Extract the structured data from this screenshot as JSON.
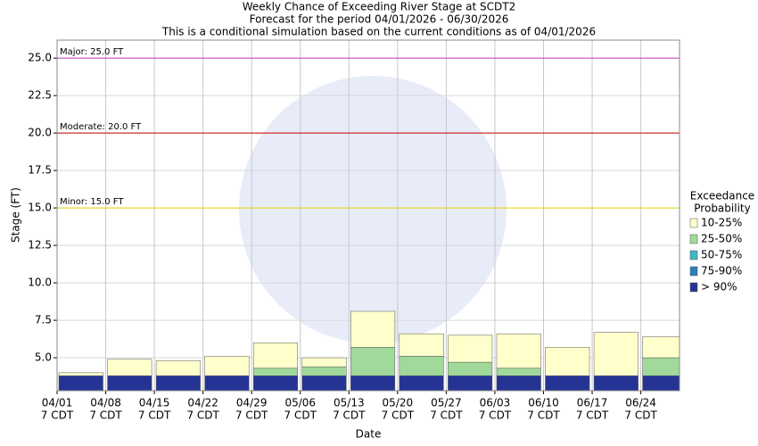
{
  "chart_data": {
    "type": "floating_bar",
    "title": "Weekly Chance of Exceeding River Stage at SCDT2",
    "subtitle": "Forecast for the period 04/01/2026 - 06/30/2026",
    "note": "This is a conditional simulation based on the current conditions as of 04/01/2026",
    "y_label": "Stage (FT)",
    "x_label": "Date",
    "categories": [
      "04/01",
      "04/08",
      "04/15",
      "04/22",
      "04/29",
      "05/06",
      "05/13",
      "05/20",
      "05/27",
      "06/03",
      "06/10",
      "06/17",
      "06/24"
    ],
    "time_label": "7 CDT",
    "legend_title": [
      "Exceedance",
      "Probability"
    ],
    "series": [
      {
        "name": "> 90%",
        "color": "#253494",
        "values": [
          3.8,
          3.8,
          3.8,
          3.8,
          3.8,
          3.8,
          3.8,
          3.8,
          3.8,
          3.8,
          3.8,
          3.8,
          3.8
        ]
      },
      {
        "name": "75-90%",
        "color": "#2c7fb8",
        "values": [
          3.8,
          3.8,
          3.8,
          3.8,
          3.8,
          3.8,
          3.8,
          3.8,
          3.8,
          3.8,
          3.8,
          3.8,
          3.8
        ]
      },
      {
        "name": "50-75%",
        "color": "#41b6c4",
        "values": [
          3.8,
          3.8,
          3.8,
          3.8,
          3.8,
          3.8,
          3.8,
          3.8,
          3.8,
          3.8,
          3.8,
          3.8,
          3.8
        ]
      },
      {
        "name": "25-50%",
        "color": "#a1d99b",
        "values": [
          3.8,
          3.8,
          3.8,
          3.8,
          4.3,
          4.4,
          5.7,
          5.1,
          4.7,
          4.3,
          3.8,
          3.8,
          5.0
        ]
      },
      {
        "name": "10-25%",
        "color": "#ffffcc",
        "values": [
          4.0,
          4.9,
          4.8,
          5.1,
          6.0,
          5.0,
          8.1,
          6.6,
          6.5,
          6.6,
          5.7,
          6.7,
          6.4
        ]
      }
    ],
    "flood_levels": [
      {
        "value": 25,
        "label": "Major: 25.0 FT",
        "color": "#cc33cc"
      },
      {
        "value": 20,
        "label": "Moderate: 20.0 FT",
        "color": "#cc0000"
      },
      {
        "value": 15,
        "label": "Minor: 15.0 FT",
        "color": "#e6d600"
      }
    ],
    "ylim": [
      2.8,
      26.2
    ],
    "yticks": [
      {
        "value": 5,
        "label": "5.0"
      },
      7.5,
      {
        "value": 10,
        "label": "10.0"
      },
      12.5,
      {
        "value": 15,
        "label": "15.0"
      },
      17.5,
      {
        "value": 20,
        "label": "20.0"
      },
      22.5,
      {
        "value": 25,
        "label": "25.0"
      }
    ],
    "grid": true,
    "legend": "right"
  }
}
